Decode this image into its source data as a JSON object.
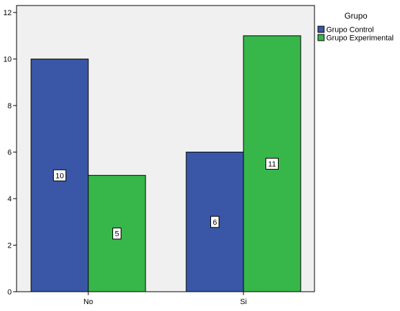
{
  "chart_data": {
    "type": "bar",
    "title": "",
    "xlabel": "",
    "ylabel": "",
    "categories": [
      "No",
      "Si"
    ],
    "series": [
      {
        "name": "Grupo Control",
        "values": [
          10,
          6
        ],
        "color": "#3a56a6"
      },
      {
        "name": "Grupo Experimental",
        "values": [
          5,
          11
        ],
        "color": "#37b64a"
      }
    ],
    "ylim": [
      0,
      12.3
    ],
    "yticks": [
      0,
      2,
      4,
      6,
      8,
      10,
      12
    ],
    "grid": false,
    "legend": {
      "title": "Grupo",
      "placement": "top-right outside"
    },
    "background": "#f0f0f0",
    "data_labels": true
  }
}
